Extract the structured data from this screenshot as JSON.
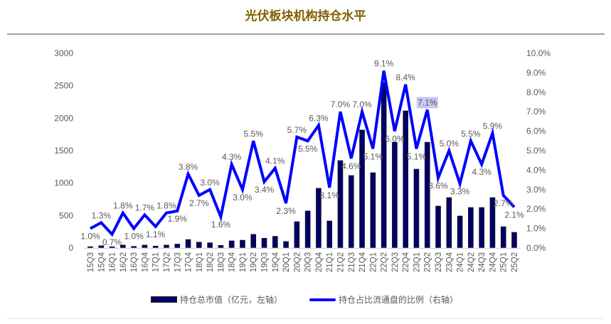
{
  "chart_data": {
    "type": "bar+line",
    "title": "光伏板块机构持仓水平",
    "categories": [
      "15Q3",
      "15Q4",
      "16Q1",
      "16Q2",
      "16Q3",
      "16Q4",
      "17Q1",
      "17Q2",
      "17Q3",
      "17Q4",
      "18Q1",
      "18Q2",
      "18Q3",
      "18Q4",
      "19Q1",
      "19Q2",
      "19Q3",
      "19Q4",
      "20Q1",
      "20Q2",
      "20Q3",
      "20Q4",
      "21Q1",
      "21Q2",
      "21Q3",
      "21Q4",
      "22Q1",
      "22Q2",
      "22Q3",
      "22Q4",
      "23Q1",
      "23Q2",
      "23Q3",
      "23Q4",
      "24Q1",
      "24Q2",
      "24Q3",
      "24Q4",
      "25Q1",
      "25Q2"
    ],
    "series": [
      {
        "name": "持仓总市值（亿元，左轴）",
        "type": "bar",
        "axis": "left",
        "color": "#000066",
        "values": [
          20,
          35,
          20,
          45,
          25,
          45,
          30,
          45,
          60,
          130,
          90,
          80,
          40,
          110,
          120,
          210,
          150,
          180,
          100,
          405,
          570,
          920,
          416,
          1347,
          1117,
          1818,
          1160,
          2550,
          1630,
          2113,
          1215,
          1630,
          646,
          777,
          493,
          624,
          624,
          777,
          328,
          241
        ]
      },
      {
        "name": "持仓占比流通盘的比例（右轴）",
        "type": "line",
        "axis": "right",
        "color": "#0000ff",
        "values": [
          1.0,
          1.3,
          0.7,
          1.8,
          1.0,
          1.7,
          1.1,
          1.8,
          1.9,
          3.8,
          2.7,
          3.0,
          1.6,
          4.3,
          3.0,
          5.5,
          3.4,
          4.1,
          2.3,
          5.7,
          5.5,
          6.3,
          3.1,
          7.0,
          4.6,
          7.0,
          5.1,
          9.1,
          6.0,
          8.4,
          5.1,
          7.1,
          3.6,
          5.0,
          3.3,
          5.5,
          4.3,
          5.9,
          2.7,
          2.1
        ]
      }
    ],
    "y_left": {
      "range": [
        0,
        3000
      ],
      "ticks": [
        "0",
        "500",
        "1000",
        "1500",
        "2000",
        "2500",
        "3000"
      ]
    },
    "y_right": {
      "range": [
        0,
        10
      ],
      "ticks": [
        "0.0%",
        "1.0%",
        "2.0%",
        "3.0%",
        "4.0%",
        "5.0%",
        "6.0%",
        "7.0%",
        "8.0%",
        "9.0%",
        "10.0%"
      ]
    },
    "grid": false,
    "legend": "bottom"
  }
}
